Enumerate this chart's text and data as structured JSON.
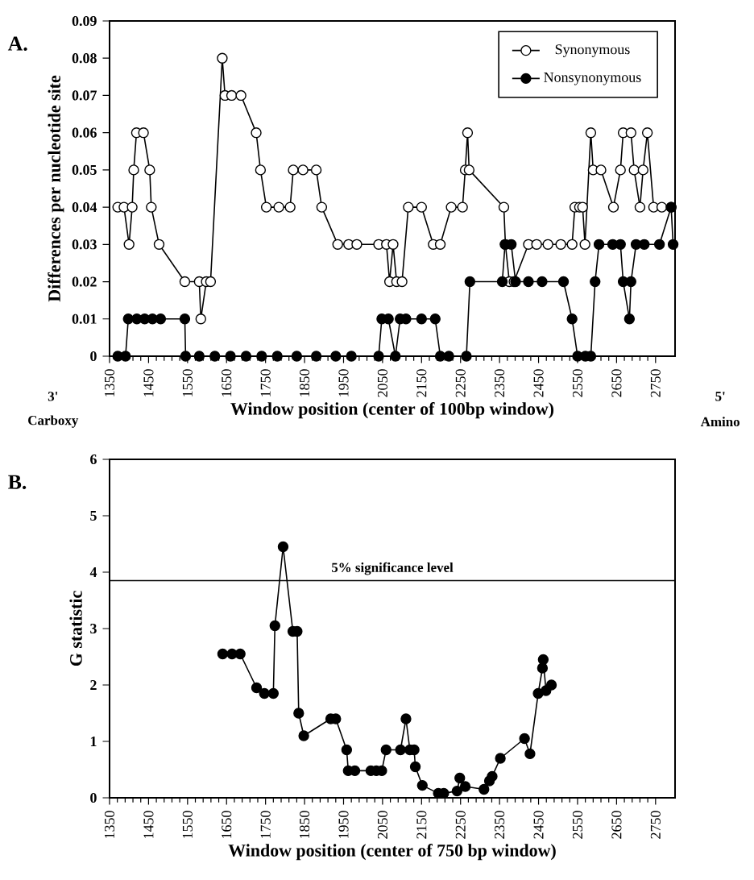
{
  "chart_data": [
    {
      "type": "line",
      "title": "A.",
      "xlabel": "Window position (center of 100bp window)",
      "ylabel": "Differences per nucleotide site",
      "xlim": [
        1350,
        2800
      ],
      "ylim": [
        0,
        0.09
      ],
      "xticks": [
        1350,
        1450,
        1550,
        1650,
        1750,
        1850,
        1950,
        2050,
        2150,
        2250,
        2350,
        2450,
        2550,
        2650,
        2750
      ],
      "yticks": [
        0,
        0.01,
        0.02,
        0.03,
        0.04,
        0.05,
        0.06,
        0.07,
        0.08,
        0.09
      ],
      "marker": "circle",
      "legend": "top right",
      "grid": false,
      "annotations": [
        "3'",
        "Carboxy",
        "5'",
        "Amino"
      ],
      "series": [
        {
          "name": "Synonymous",
          "color": "#000000",
          "x": [
            1371,
            1387,
            1400,
            1408,
            1412,
            1419,
            1437,
            1453,
            1457,
            1477,
            1543,
            1580,
            1584,
            1598,
            1609,
            1639,
            1646,
            1663,
            1687,
            1726,
            1737,
            1752,
            1784,
            1813,
            1821,
            1846,
            1880,
            1894,
            1935,
            1963,
            1984,
            2040,
            2060,
            2068,
            2077,
            2086,
            2100,
            2116,
            2150,
            2180,
            2198,
            2226,
            2255,
            2262,
            2268,
            2272,
            2361,
            2365,
            2375,
            2387,
            2424,
            2445,
            2474,
            2507,
            2536,
            2543,
            2555,
            2563,
            2569,
            2584,
            2590,
            2610,
            2642,
            2660,
            2667,
            2687,
            2695,
            2710,
            2718,
            2729,
            2745,
            2766,
            2790
          ],
          "values": [
            0.04,
            0.04,
            0.03,
            0.04,
            0.05,
            0.06,
            0.06,
            0.05,
            0.04,
            0.03,
            0.02,
            0.02,
            0.01,
            0.02,
            0.02,
            0.08,
            0.07,
            0.07,
            0.07,
            0.06,
            0.05,
            0.04,
            0.04,
            0.04,
            0.05,
            0.05,
            0.05,
            0.04,
            0.03,
            0.03,
            0.03,
            0.03,
            0.03,
            0.02,
            0.03,
            0.02,
            0.02,
            0.04,
            0.04,
            0.03,
            0.03,
            0.04,
            0.04,
            0.05,
            0.06,
            0.05,
            0.04,
            0.03,
            0.02,
            0.02,
            0.03,
            0.03,
            0.03,
            0.03,
            0.03,
            0.04,
            0.04,
            0.04,
            0.03,
            0.06,
            0.05,
            0.05,
            0.04,
            0.05,
            0.06,
            0.06,
            0.05,
            0.04,
            0.05,
            0.06,
            0.04,
            0.04,
            0.04
          ]
        },
        {
          "name": "Nonsynonymous",
          "color": "#000000",
          "x": [
            1371,
            1391,
            1398,
            1420,
            1440,
            1460,
            1481,
            1543,
            1545,
            1580,
            1620,
            1660,
            1700,
            1740,
            1780,
            1830,
            1880,
            1930,
            1970,
            2040,
            2048,
            2065,
            2083,
            2095,
            2110,
            2150,
            2185,
            2198,
            2220,
            2265,
            2274,
            2357,
            2364,
            2380,
            2391,
            2424,
            2459,
            2514,
            2536,
            2550,
            2570,
            2584,
            2595,
            2605,
            2640,
            2660,
            2667,
            2683,
            2687,
            2700,
            2721,
            2760,
            2790,
            2795
          ],
          "values": [
            0,
            0,
            0.01,
            0.01,
            0.01,
            0.01,
            0.01,
            0.01,
            0,
            0,
            0,
            0,
            0,
            0,
            0,
            0,
            0,
            0,
            0,
            0,
            0.01,
            0.01,
            0,
            0.01,
            0.01,
            0.01,
            0.01,
            0,
            0,
            0,
            0.02,
            0.02,
            0.03,
            0.03,
            0.02,
            0.02,
            0.02,
            0.02,
            0.01,
            0,
            0,
            0,
            0.02,
            0.03,
            0.03,
            0.03,
            0.02,
            0.01,
            0.02,
            0.03,
            0.03,
            0.03,
            0.04,
            0.03
          ]
        }
      ]
    },
    {
      "type": "line",
      "title": "B.",
      "xlabel": "Window position (center of 750 bp window)",
      "ylabel": "G statistic",
      "xlim": [
        1350,
        2800
      ],
      "ylim": [
        0,
        6
      ],
      "xticks": [
        1350,
        1450,
        1550,
        1650,
        1750,
        1850,
        1950,
        2050,
        2150,
        2250,
        2350,
        2450,
        2550,
        2650,
        2750
      ],
      "yticks": [
        0,
        1,
        2,
        3,
        4,
        5,
        6
      ],
      "marker": "circle",
      "grid": false,
      "ref_lines": [
        {
          "axis": "y",
          "value": 3.85,
          "label": "5% significance level"
        }
      ],
      "series": [
        {
          "color": "#000000",
          "x": [
            1640,
            1664,
            1685,
            1727,
            1747,
            1770,
            1774,
            1795,
            1820,
            1831,
            1835,
            1848,
            1917,
            1930,
            1958,
            1962,
            1979,
            2020,
            2034,
            2048,
            2059,
            2096,
            2110,
            2120,
            2131,
            2134,
            2152,
            2193,
            2207,
            2241,
            2248,
            2262,
            2310,
            2324,
            2331,
            2352,
            2414,
            2428,
            2449,
            2460,
            2462,
            2469,
            2483
          ],
          "values": [
            2.55,
            2.55,
            2.55,
            1.95,
            1.85,
            1.85,
            3.05,
            4.45,
            2.95,
            2.95,
            1.5,
            1.1,
            1.4,
            1.4,
            0.85,
            0.48,
            0.48,
            0.48,
            0.48,
            0.48,
            0.85,
            0.85,
            1.4,
            0.85,
            0.85,
            0.55,
            0.22,
            0.08,
            0.08,
            0.12,
            0.35,
            0.2,
            0.15,
            0.3,
            0.38,
            0.7,
            1.05,
            0.78,
            1.85,
            2.3,
            2.45,
            1.9,
            2.0
          ]
        }
      ]
    }
  ]
}
